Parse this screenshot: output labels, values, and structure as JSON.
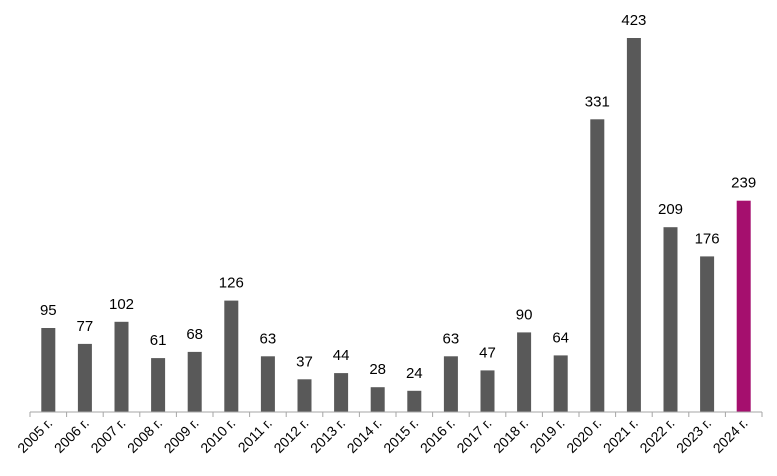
{
  "chart_data": {
    "type": "bar",
    "categories": [
      "2005 г.",
      "2006 г.",
      "2007 г.",
      "2008 г.",
      "2009 г.",
      "2010 г.",
      "2011 г.",
      "2012 г.",
      "2013 г.",
      "2014 г.",
      "2015 г.",
      "2016 г.",
      "2017 г.",
      "2018 г.",
      "2019 г.",
      "2020 г.",
      "2021 г.",
      "2022 г.",
      "2023 г.",
      "2024 г."
    ],
    "values": [
      95,
      77,
      102,
      61,
      68,
      126,
      63,
      37,
      44,
      28,
      24,
      63,
      47,
      90,
      64,
      331,
      423,
      209,
      176,
      239
    ],
    "title": "",
    "xlabel": "",
    "ylabel": "",
    "ylim": [
      0,
      423
    ],
    "grid": false,
    "legend": "none",
    "colors": {
      "bar": "#595959",
      "highlight": "#A50F6E",
      "axis": "#A6A6A6"
    },
    "highlight_index": 19
  }
}
